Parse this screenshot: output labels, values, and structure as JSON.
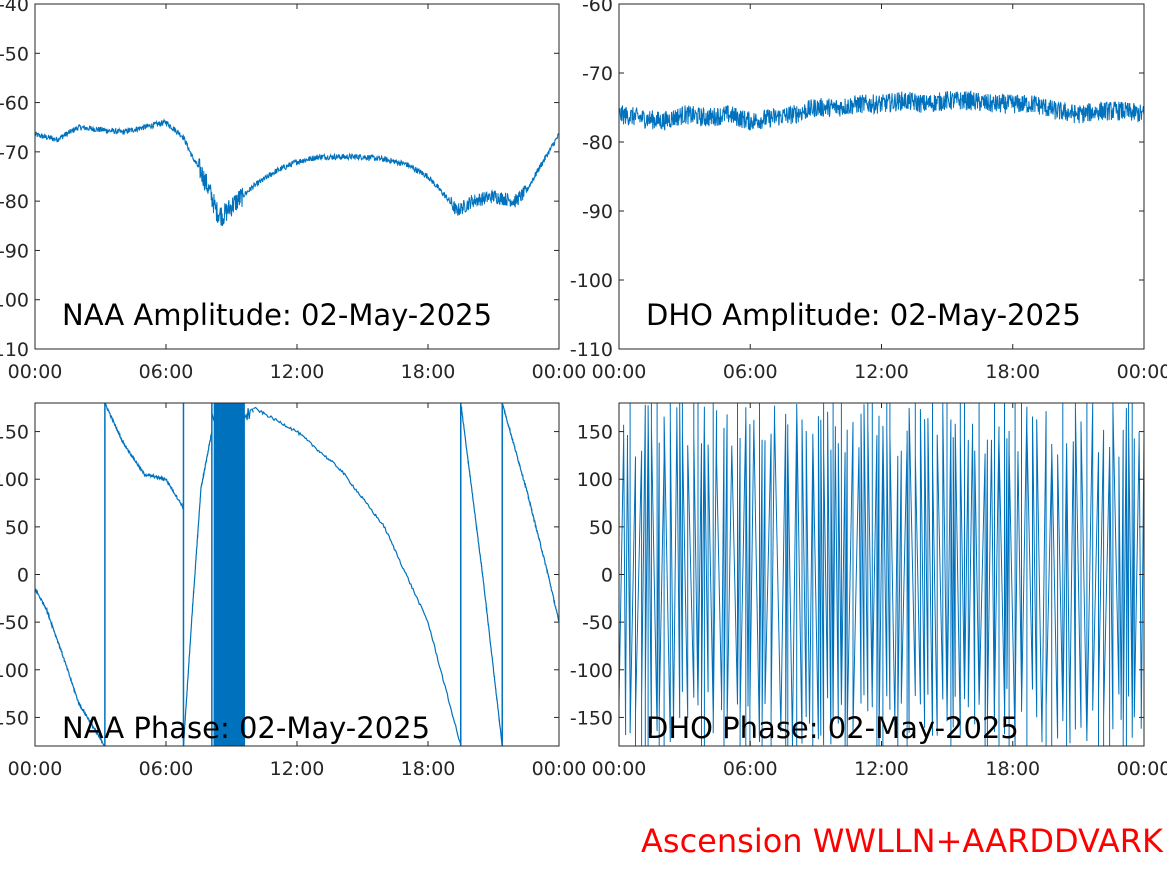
{
  "chart_data": [
    {
      "type": "line",
      "title": "NAA Amplitude: 02-May-2025",
      "xlim": [
        "00:00",
        "24:00"
      ],
      "ylim": [
        -110,
        -40
      ],
      "xticks": [
        "00:00",
        "06:00",
        "12:00",
        "18:00",
        "00:00"
      ],
      "yticks": [
        "-40",
        "-50",
        "-60",
        "-70",
        "-80",
        "-90",
        "-100",
        "-110"
      ],
      "series_color": "#0072BD",
      "x_hours": [
        0,
        1,
        2,
        3,
        4,
        5,
        6,
        6.8,
        7.2,
        7.6,
        8,
        8.3,
        8.6,
        9,
        10,
        11,
        12,
        13,
        14,
        15,
        16,
        17,
        18,
        19,
        19.3,
        19.7,
        20,
        21,
        22,
        22.5,
        23,
        24
      ],
      "y_values": [
        -66.5,
        -67.5,
        -65,
        -65.5,
        -66,
        -65,
        -64,
        -67,
        -71,
        -74,
        -78,
        -82,
        -83,
        -81,
        -77,
        -74,
        -72,
        -71,
        -71,
        -71,
        -71.5,
        -72.5,
        -75,
        -80,
        -82,
        -81,
        -80,
        -79,
        -80,
        -78,
        -74,
        -66.5
      ]
    },
    {
      "type": "line",
      "title": "DHO Amplitude: 02-May-2025",
      "xlim": [
        "00:00",
        "24:00"
      ],
      "ylim": [
        -110,
        -60
      ],
      "xticks": [
        "00:00",
        "06:00",
        "12:00",
        "18:00",
        "00:00"
      ],
      "yticks": [
        "-60",
        "-70",
        "-80",
        "-90",
        "-100",
        "-110"
      ],
      "series_color": "#0072BD",
      "x_hours": [
        0,
        1,
        2,
        3,
        4,
        5,
        6,
        7,
        8,
        9,
        10,
        11,
        12,
        13,
        14,
        15,
        16,
        17,
        18,
        19,
        20,
        21,
        22,
        23,
        24
      ],
      "y_values": [
        -76,
        -76.5,
        -77,
        -76,
        -76.5,
        -76,
        -77,
        -76.5,
        -76,
        -75,
        -75,
        -74.5,
        -74.5,
        -74,
        -74.5,
        -74,
        -74,
        -74.5,
        -74.5,
        -74.5,
        -75.5,
        -76,
        -75.5,
        -75.5,
        -76
      ]
    },
    {
      "type": "line",
      "title": "NAA Phase: 02-May-2025",
      "xlim": [
        "00:00",
        "24:00"
      ],
      "ylim": [
        -180,
        180
      ],
      "xticks": [
        "00:00",
        "06:00",
        "12:00",
        "18:00",
        "00:00"
      ],
      "yticks": [
        "150",
        "100",
        "50",
        "0",
        "-50",
        "-100",
        "-150"
      ],
      "series_color": "#0072BD",
      "segments": [
        {
          "x_hours": [
            0,
            0.5,
            1.2,
            2,
            3.2
          ],
          "y_values": [
            -15,
            -35,
            -80,
            -135,
            -180
          ]
        },
        {
          "x_hours": [
            3.2,
            4,
            5,
            6,
            6.8
          ],
          "y_values": [
            180,
            140,
            105,
            100,
            70
          ]
        },
        {
          "x_hours": [
            6.8,
            7.2,
            7.6,
            8.1
          ],
          "y_values": [
            -180,
            -40,
            90,
            150
          ]
        },
        {
          "x_hours": [
            10,
            12,
            14,
            16,
            18,
            19.5
          ],
          "y_values": [
            175,
            150,
            110,
            50,
            -50,
            -180
          ]
        },
        {
          "x_hours": [
            19.5,
            20.5,
            21.4
          ],
          "y_values": [
            180,
            0,
            -180
          ]
        },
        {
          "x_hours": [
            21.4,
            22.5,
            23.5,
            24
          ],
          "y_values": [
            180,
            90,
            0,
            -50
          ]
        }
      ],
      "dense_band_hours": [
        8.2,
        9.6
      ]
    },
    {
      "type": "line",
      "title": "DHO Phase: 02-May-2025",
      "xlim": [
        "00:00",
        "24:00"
      ],
      "ylim": [
        -180,
        180
      ],
      "xticks": [
        "00:00",
        "06:00",
        "12:00",
        "18:00",
        "00:00"
      ],
      "yticks": [
        "150",
        "100",
        "50",
        "0",
        "-50",
        "-100",
        "-150"
      ],
      "series_color": "#0072BD",
      "wrap_cycles_approx": 110
    }
  ],
  "footer": "Ascension WWLLN+AARDDVARK"
}
